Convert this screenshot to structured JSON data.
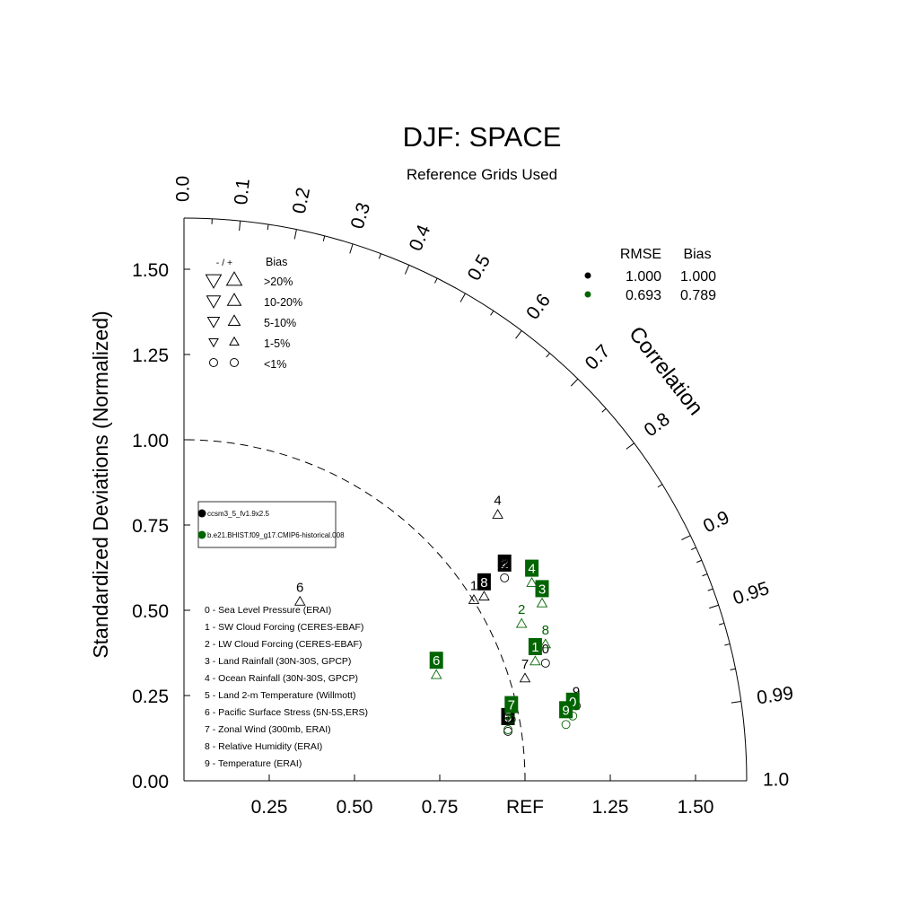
{
  "chart_data": {
    "type": "taylor",
    "title": "DJF: SPACE",
    "subtitle": "Reference Grids Used",
    "ylabel": "Standardized Deviations (Normalized)",
    "corr_label": "Correlation",
    "ref_label": "REF",
    "xlim": [
      0,
      1.65
    ],
    "ylim": [
      0,
      1.65
    ],
    "x_ticks": [
      {
        "value": 0.25,
        "label": "0.25"
      },
      {
        "value": 0.5,
        "label": "0.50"
      },
      {
        "value": 0.75,
        "label": "0.75"
      },
      {
        "value": 1.0,
        "label": "REF"
      },
      {
        "value": 1.25,
        "label": "1.25"
      },
      {
        "value": 1.5,
        "label": "1.50"
      }
    ],
    "y_ticks": [
      {
        "value": 0.0,
        "label": "0.00"
      },
      {
        "value": 0.25,
        "label": "0.25"
      },
      {
        "value": 0.5,
        "label": "0.50"
      },
      {
        "value": 0.75,
        "label": "0.75"
      },
      {
        "value": 1.0,
        "label": "1.00"
      },
      {
        "value": 1.25,
        "label": "1.25"
      },
      {
        "value": 1.5,
        "label": "1.50"
      }
    ],
    "corr_ticks": [
      "0.0",
      "0.1",
      "0.2",
      "0.3",
      "0.4",
      "0.5",
      "0.6",
      "0.7",
      "0.8",
      "0.9",
      "0.95",
      "0.99",
      "1.0"
    ],
    "ref_arc": 1.0,
    "bias_legend": {
      "header_sign": "- / +",
      "header_bias": "Bias",
      "rows": [
        {
          "label": ">20%",
          "size": 4
        },
        {
          "label": "10-20%",
          "size": 3
        },
        {
          "label": "5-10%",
          "size": 2
        },
        {
          "label": "1-5%",
          "size": 1
        },
        {
          "label": "<1%",
          "size": 0
        }
      ]
    },
    "stats_table": {
      "headers": [
        "RMSE",
        "Bias"
      ],
      "rows": [
        {
          "color": "#000000",
          "rmse": "1.000",
          "bias": "1.000"
        },
        {
          "color": "#006400",
          "rmse": "0.693",
          "bias": "0.789"
        }
      ]
    },
    "case_legend": [
      {
        "name": "ccsm3_5_fv1.9x2.5",
        "color": "#000000"
      },
      {
        "name": "b.e21.BHIST.f09_g17.CMIP6-historical.008",
        "color": "#006400"
      }
    ],
    "variables": [
      "0 - Sea Level Pressure (ERAI)",
      "1 - SW Cloud Forcing (CERES-EBAF)",
      "2 - LW Cloud Forcing (CERES-EBAF)",
      "3 - Land Rainfall (30N-30S, GPCP)",
      "4 - Ocean Rainfall (30N-30S, GPCP)",
      "5 - Land 2-m Temperature (Willmott)",
      "6 - Pacific Surface Stress (5N-5S,ERS)",
      "7 - Zonal Wind (300mb, ERAI)",
      "8 - Relative Humidity (ERAI)",
      "9 - Temperature (ERAI)"
    ],
    "series": [
      {
        "color": "#000000",
        "points": [
          {
            "id": "0",
            "x": 1.06,
            "y": 0.345,
            "marker": "circle",
            "boxed": false
          },
          {
            "id": "1",
            "x": 0.85,
            "y": 0.53,
            "marker": "up",
            "boxed": false
          },
          {
            "id": "2",
            "x": 0.94,
            "y": 0.595,
            "marker": "circle",
            "boxed": true
          },
          {
            "id": "3",
            "x": 0.94,
            "y": 0.595,
            "marker": "none",
            "boxed": false
          },
          {
            "id": "4",
            "x": 0.92,
            "y": 0.78,
            "marker": "up",
            "boxed": false
          },
          {
            "id": "5",
            "x": 0.95,
            "y": 0.145,
            "marker": "circle",
            "boxed": true
          },
          {
            "id": "6",
            "x": 0.34,
            "y": 0.525,
            "marker": "up",
            "boxed": false
          },
          {
            "id": "7",
            "x": 1.0,
            "y": 0.3,
            "marker": "up",
            "boxed": false
          },
          {
            "id": "8",
            "x": 0.88,
            "y": 0.54,
            "marker": "up",
            "boxed": true
          },
          {
            "id": "9",
            "x": 1.15,
            "y": 0.22,
            "marker": "circle",
            "boxed": false
          }
        ]
      },
      {
        "color": "#006400",
        "points": [
          {
            "id": "0",
            "x": 1.14,
            "y": 0.19,
            "marker": "circle",
            "boxed": true
          },
          {
            "id": "1",
            "x": 1.03,
            "y": 0.35,
            "marker": "up",
            "boxed": true
          },
          {
            "id": "2",
            "x": 0.99,
            "y": 0.46,
            "marker": "up",
            "boxed": false
          },
          {
            "id": "3",
            "x": 1.05,
            "y": 0.52,
            "marker": "up",
            "boxed": true
          },
          {
            "id": "4",
            "x": 1.02,
            "y": 0.58,
            "marker": "up",
            "boxed": true
          },
          {
            "id": "5",
            "x": 0.95,
            "y": 0.15,
            "marker": "circle",
            "boxed": false
          },
          {
            "id": "6",
            "x": 0.74,
            "y": 0.31,
            "marker": "up",
            "boxed": true
          },
          {
            "id": "7",
            "x": 0.96,
            "y": 0.18,
            "marker": "circle",
            "boxed": true
          },
          {
            "id": "8",
            "x": 1.06,
            "y": 0.4,
            "marker": "up",
            "boxed": false
          },
          {
            "id": "9",
            "x": 1.12,
            "y": 0.165,
            "marker": "circle",
            "boxed": true
          }
        ]
      }
    ]
  }
}
